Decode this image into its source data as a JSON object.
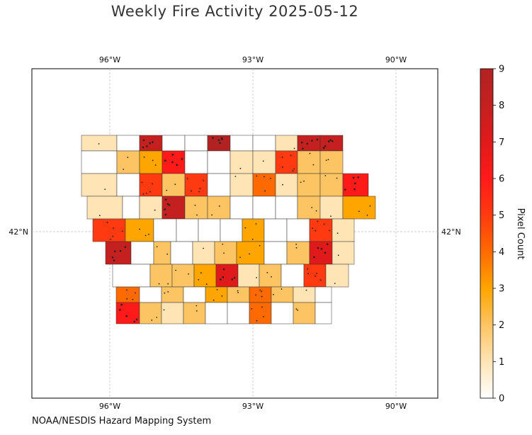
{
  "title": "Weekly Fire Activity 2025-05-12",
  "credit": "NOAA/NESDIS Hazard Mapping System",
  "map": {
    "lon_ticks": [
      "96°W",
      "93°W",
      "90°W"
    ],
    "lat_ticks": [
      "42°N"
    ],
    "gridlines": true
  },
  "colorbar": {
    "label": "Pixel Count",
    "ticks": [
      "0",
      "1",
      "2",
      "3",
      "4",
      "5",
      "6",
      "7",
      "8",
      "9"
    ],
    "range": [
      0,
      9
    ],
    "colors": [
      "#ffffff",
      "#ffe4b5",
      "#fdc463",
      "#ffa500",
      "#ff6a00",
      "#ff3a10",
      "#ff1a1a",
      "#e01a1a",
      "#c42020",
      "#b22222"
    ]
  },
  "county_counts": [
    [
      1,
      0,
      8,
      0,
      0,
      9,
      0,
      0,
      1,
      8,
      8
    ],
    [
      0,
      2,
      3,
      6,
      0,
      0,
      1,
      1,
      5,
      2,
      2
    ],
    [
      1,
      0,
      5,
      2,
      5,
      0,
      1,
      4,
      1,
      2,
      2,
      6
    ],
    [
      1,
      0,
      1,
      8,
      2,
      2,
      0,
      0,
      0,
      2,
      1,
      3
    ],
    [
      5,
      3,
      0,
      0,
      0,
      0,
      3,
      0,
      0,
      5,
      1
    ],
    [
      8,
      0,
      2,
      0,
      1,
      2,
      3,
      0,
      2,
      7,
      1
    ],
    [
      0,
      2,
      2,
      3,
      7,
      1,
      2,
      0,
      5,
      1
    ],
    [
      4,
      0,
      2,
      0,
      3,
      2,
      4,
      2,
      1,
      0
    ],
    [
      6,
      2,
      1,
      2,
      0,
      0,
      4,
      0,
      2,
      0
    ]
  ]
}
